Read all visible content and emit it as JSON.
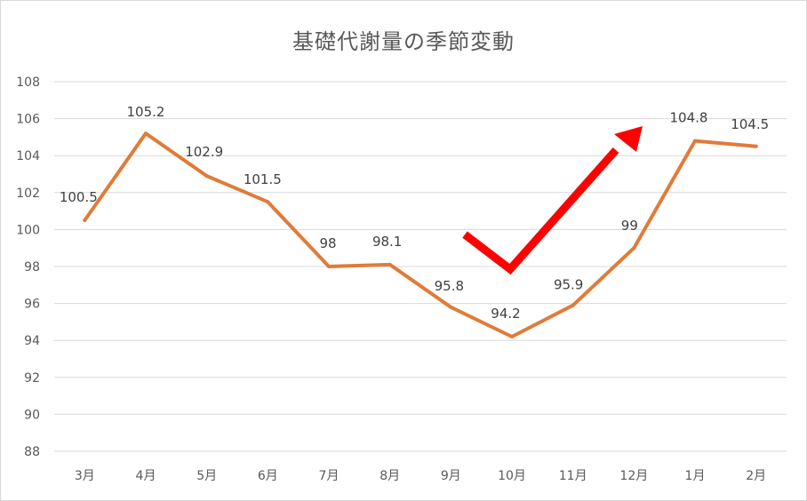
{
  "chart_data": {
    "type": "line",
    "title": "基礎代謝量の季節変動",
    "categories": [
      "3月",
      "4月",
      "5月",
      "6月",
      "7月",
      "8月",
      "9月",
      "10月",
      "11月",
      "12月",
      "1月",
      "2月"
    ],
    "series": [
      {
        "values": [
          100.5,
          105.2,
          102.9,
          101.5,
          98,
          98.1,
          95.8,
          94.2,
          95.9,
          99,
          104.8,
          104.5
        ],
        "labels": [
          "100.5",
          "105.2",
          "102.9",
          "101.5",
          "98",
          "98.1",
          "95.8",
          "94.2",
          "95.9",
          "99",
          "104.8",
          "104.5"
        ],
        "color": "#e07b39"
      }
    ],
    "yticks": [
      "88",
      "90",
      "92",
      "94",
      "96",
      "98",
      "100",
      "102",
      "104",
      "106",
      "108"
    ],
    "ylim": [
      88,
      108
    ],
    "grid": true,
    "legend": "none",
    "annotation": {
      "type": "check-arrow",
      "color": "#ff0000"
    }
  }
}
